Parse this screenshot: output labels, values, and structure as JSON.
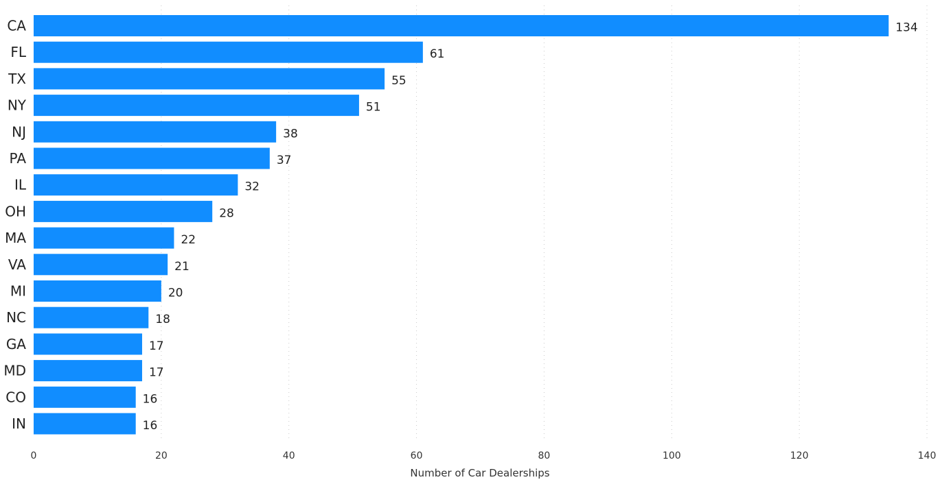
{
  "chart_data": {
    "type": "bar",
    "orientation": "horizontal",
    "categories": [
      "CA",
      "FL",
      "TX",
      "NY",
      "NJ",
      "PA",
      "IL",
      "OH",
      "MA",
      "VA",
      "MI",
      "NC",
      "GA",
      "MD",
      "CO",
      "IN"
    ],
    "values": [
      134,
      61,
      55,
      51,
      38,
      37,
      32,
      28,
      22,
      21,
      20,
      18,
      17,
      17,
      16,
      16
    ],
    "title": "",
    "xlabel": "Number of Car Dealerships",
    "ylabel": "",
    "xlim": [
      0,
      140
    ],
    "xticks": [
      0,
      20,
      40,
      60,
      80,
      100,
      120,
      140
    ],
    "grid": "vertical-dotted",
    "legend": "none",
    "bar_color": "#118DFF"
  }
}
